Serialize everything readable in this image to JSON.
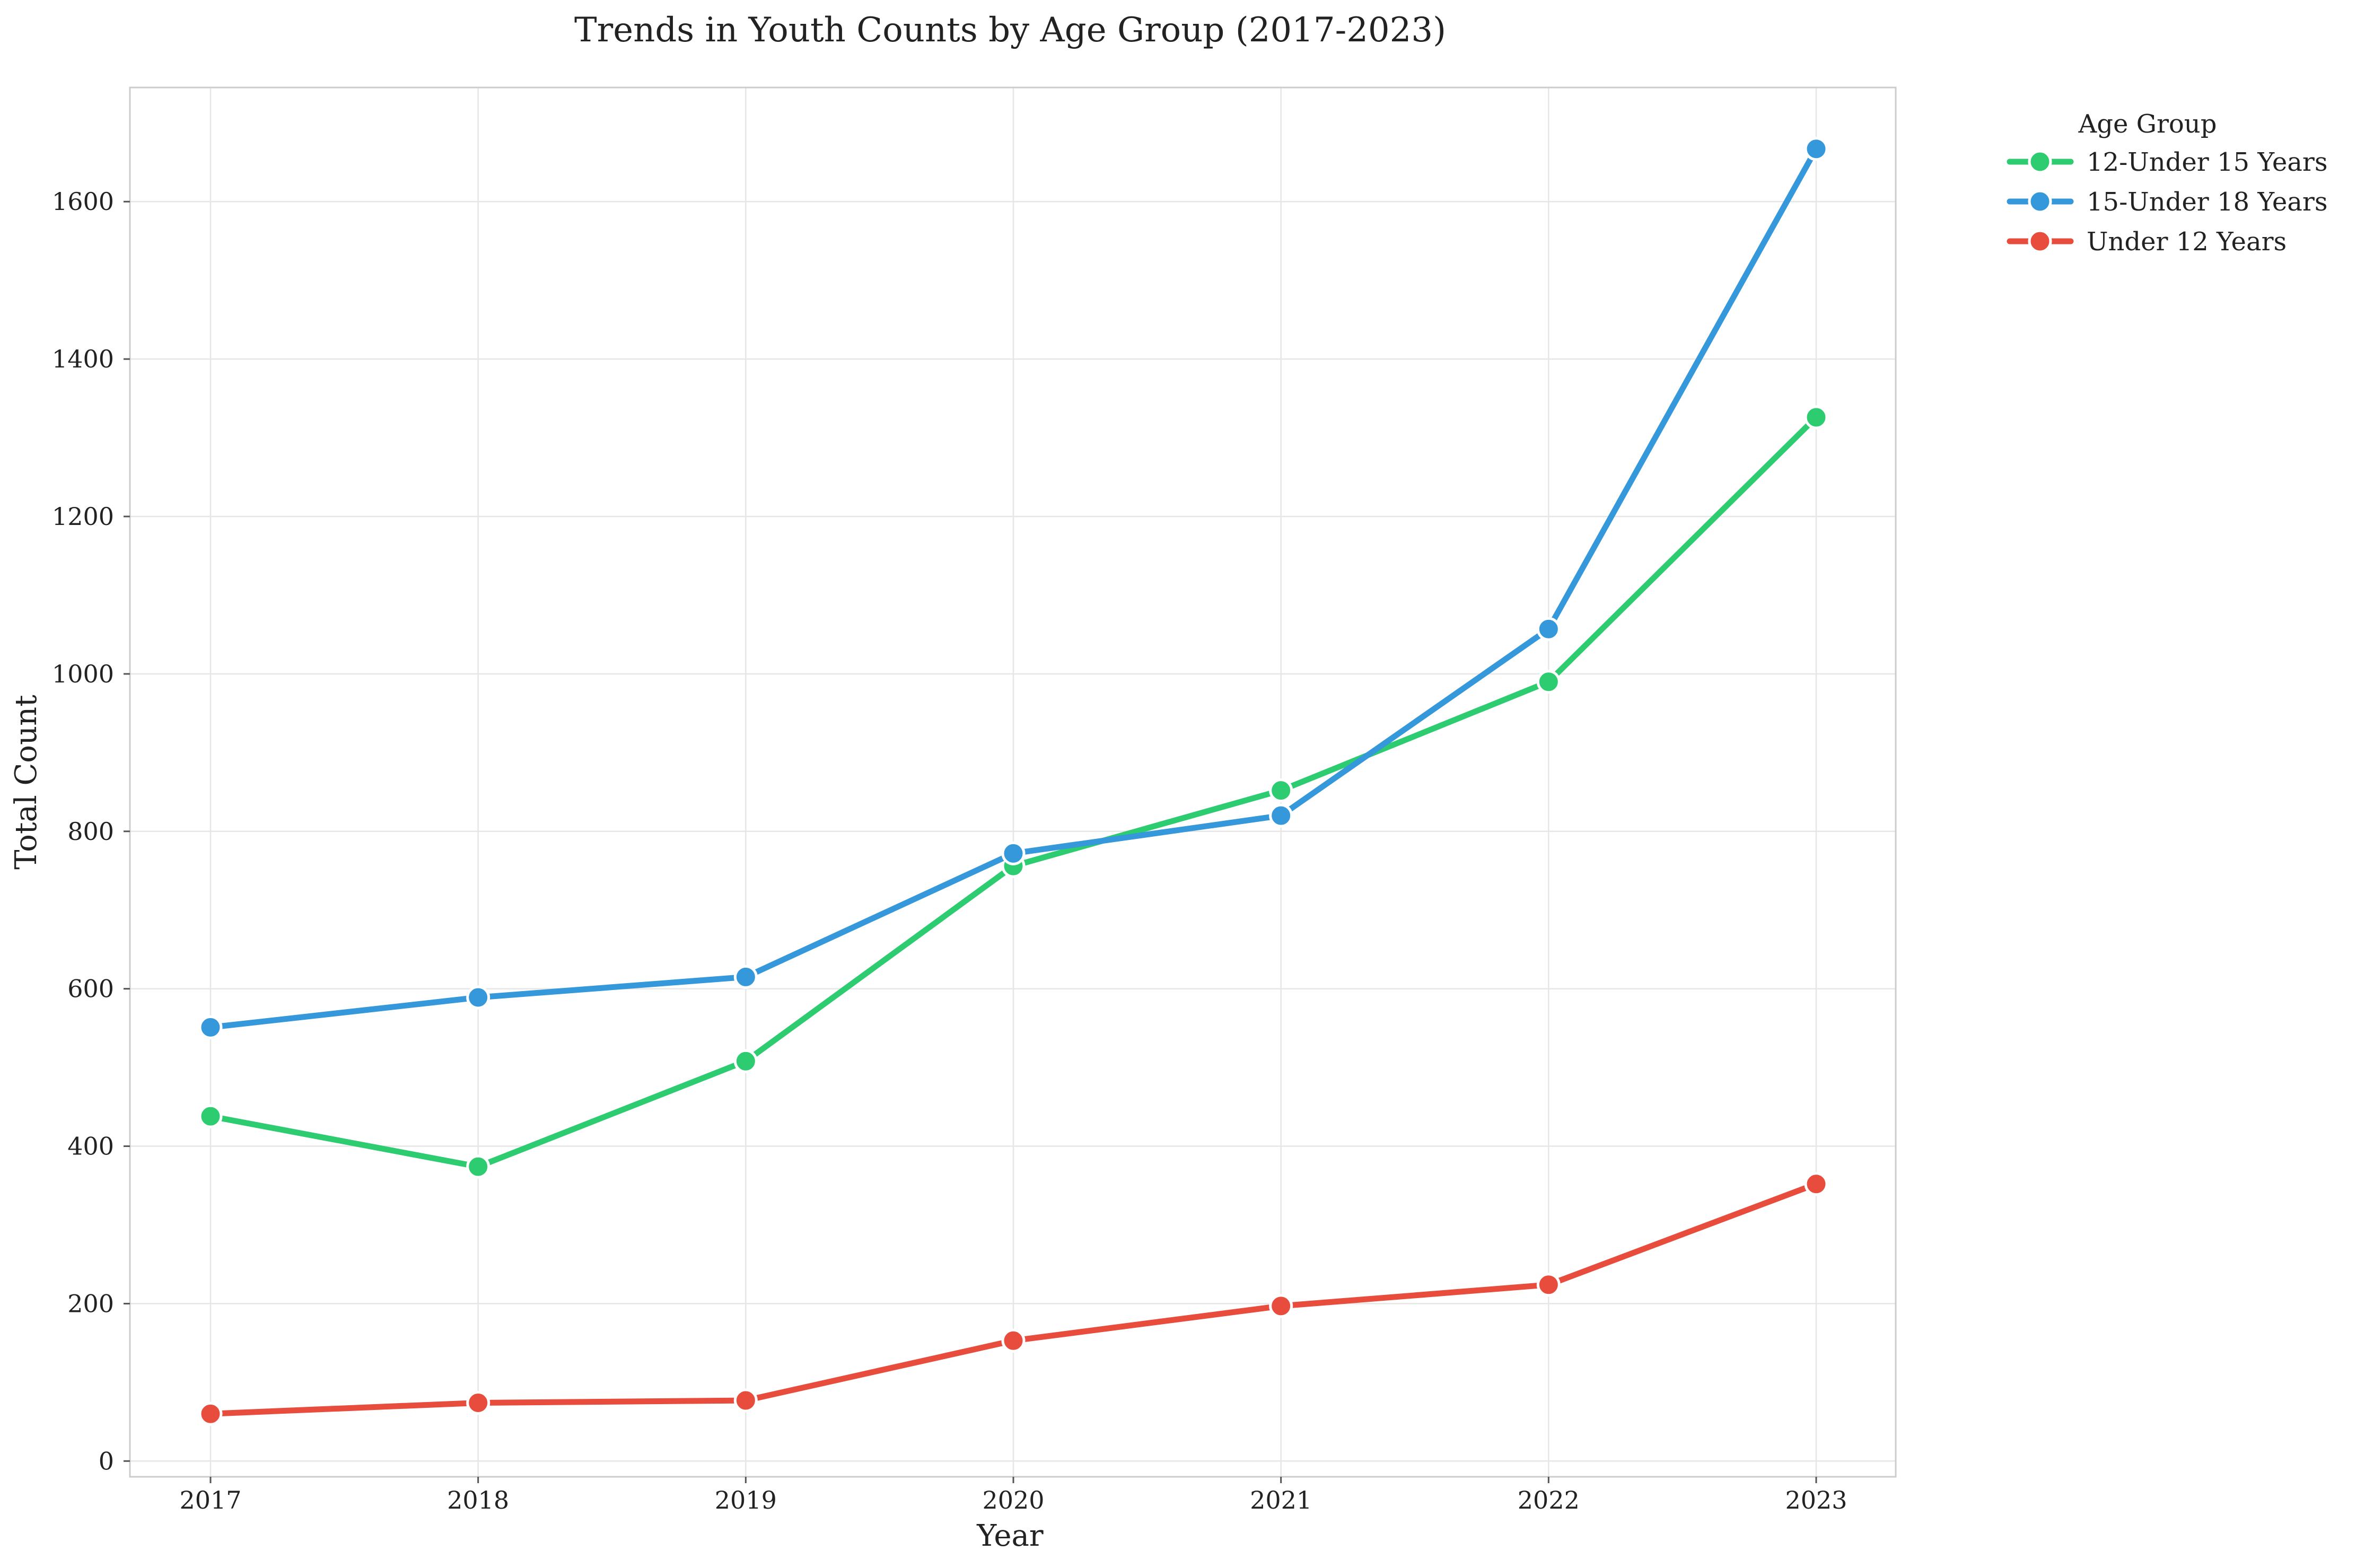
{
  "chart_data": {
    "type": "line",
    "title": "Trends in Youth Counts by Age Group (2017-2023)",
    "xlabel": "Year",
    "ylabel": "Total Count",
    "x": [
      "2017",
      "2018",
      "2019",
      "2020",
      "2021",
      "2022",
      "2023"
    ],
    "ylim": [
      -20,
      1745
    ],
    "yticks": [
      0,
      200,
      400,
      600,
      800,
      1000,
      1200,
      1400,
      1600
    ],
    "yticklabels": [
      "0",
      "200",
      "400",
      "600",
      "800",
      "1000",
      "1200",
      "1400",
      "1600"
    ],
    "grid": true,
    "legend": {
      "title": "Age Group",
      "placement": "outside-top-right"
    },
    "series": [
      {
        "name": "12-Under 15 Years",
        "color": "#2ecc71",
        "values": [
          438,
          374,
          508,
          756,
          852,
          990,
          1326
        ]
      },
      {
        "name": "15-Under 18 Years",
        "color": "#3498db",
        "values": [
          551,
          589,
          615,
          772,
          820,
          1057,
          1667
        ]
      },
      {
        "name": "Under 12 Years",
        "color": "#e74c3c",
        "values": [
          60,
          74,
          77,
          153,
          197,
          224,
          352
        ]
      }
    ]
  }
}
